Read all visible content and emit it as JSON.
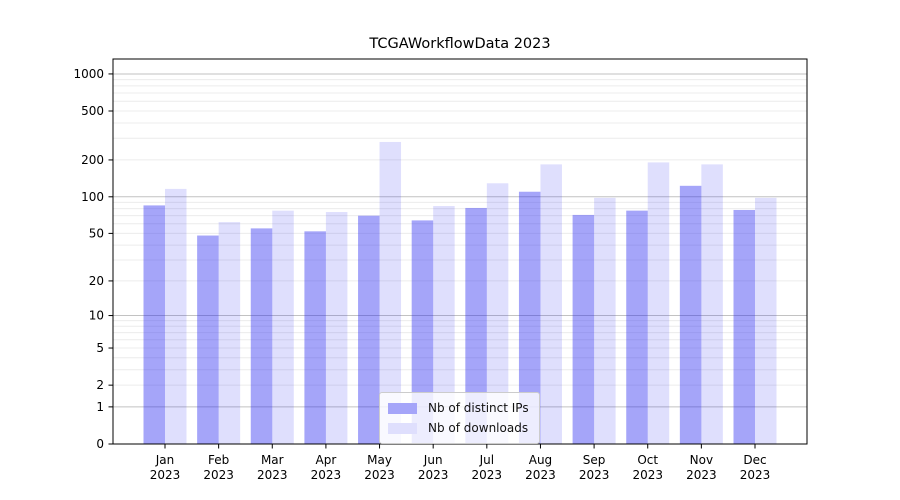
{
  "chart_data": {
    "type": "bar",
    "title": "TCGAWorkflowData 2023",
    "categories": [
      "Jan",
      "Feb",
      "Mar",
      "Apr",
      "May",
      "Jun",
      "Jul",
      "Aug",
      "Sep",
      "Oct",
      "Nov",
      "Dec"
    ],
    "category_year": "2023",
    "series": [
      {
        "name": "Nb of distinct IPs",
        "color": "#2828f0",
        "opacity": 0.42,
        "values": [
          85,
          48,
          55,
          52,
          70,
          64,
          81,
          110,
          71,
          77,
          123,
          78
        ]
      },
      {
        "name": "Nb of downloads",
        "color": "#2828f0",
        "opacity": 0.15,
        "values": [
          116,
          62,
          77,
          75,
          280,
          84,
          129,
          184,
          98,
          191,
          184,
          98
        ]
      }
    ],
    "xlabel": "",
    "ylabel": "",
    "yscale": "log1p",
    "ylim": [
      0,
      1322
    ],
    "y_ticks": [
      0,
      1,
      2,
      5,
      10,
      20,
      50,
      100,
      200,
      500,
      1000
    ],
    "y_major_grid": [
      1,
      10,
      100,
      1000
    ],
    "grid": true,
    "legend_position": "lower center"
  }
}
